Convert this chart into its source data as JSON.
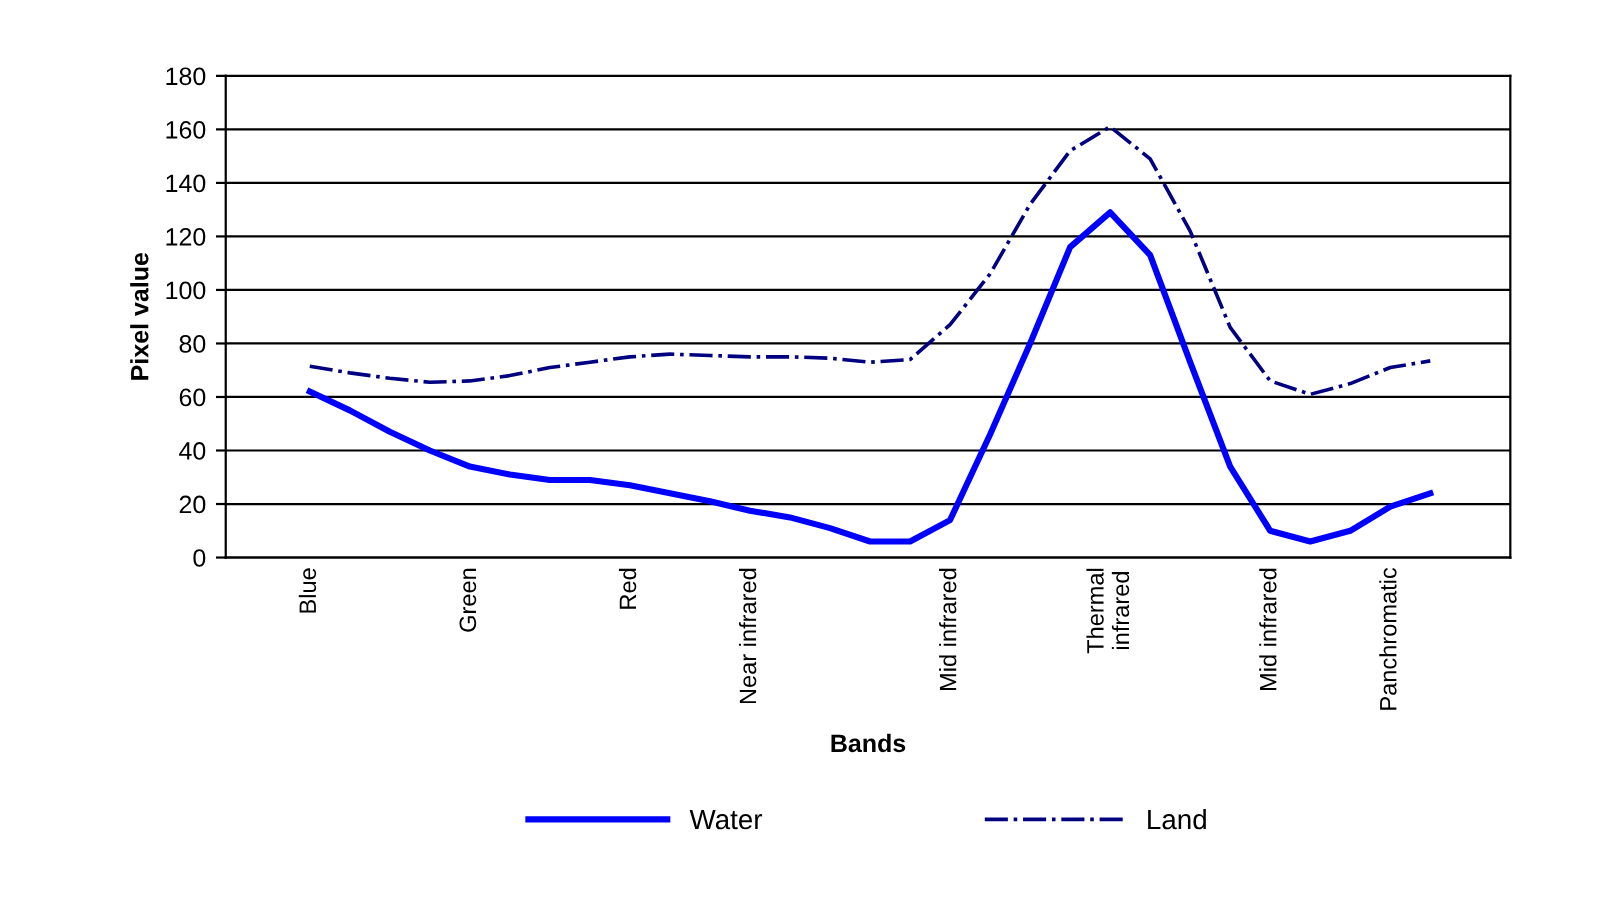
{
  "chart_data": {
    "type": "line",
    "xlabel": "Bands",
    "ylabel": "Pixel value",
    "categories": [
      "Blue",
      null,
      null,
      null,
      "Green",
      null,
      null,
      null,
      "Red",
      null,
      null,
      "Near infrared",
      null,
      null,
      null,
      null,
      "Mid infrared",
      null,
      null,
      null,
      "Thermal\ninfrared",
      null,
      null,
      null,
      "Mid infrared",
      null,
      null,
      "Panchromatic",
      null
    ],
    "series": [
      {
        "name": "Water",
        "color": "#0000ff",
        "line_style": "solid",
        "values": [
          62,
          55,
          47,
          40,
          34,
          31,
          29,
          29,
          27,
          24,
          21,
          17.5,
          15,
          11,
          6,
          6,
          14,
          46,
          80,
          116,
          129,
          113,
          73,
          34,
          10,
          6,
          10,
          19,
          24
        ]
      },
      {
        "name": "Land",
        "color": "#000080",
        "line_style": "dashdot",
        "values": [
          71.5,
          69,
          67,
          65.5,
          66,
          68,
          71,
          73,
          75,
          76,
          75.5,
          75,
          75,
          74.5,
          73,
          74,
          87,
          106,
          132,
          152,
          161,
          149,
          122,
          86,
          66,
          61,
          65,
          71,
          73.5
        ]
      }
    ],
    "ylim": [
      0,
      180
    ],
    "yticks": [
      0,
      20,
      40,
      60,
      80,
      100,
      120,
      140,
      160,
      180
    ],
    "grid": "y",
    "legend": "bottom",
    "marker": "none"
  }
}
